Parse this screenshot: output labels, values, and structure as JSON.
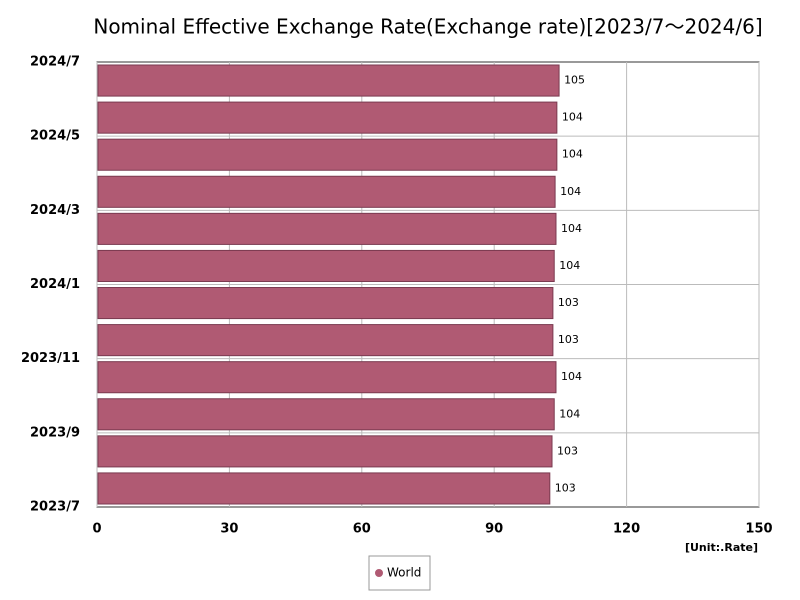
{
  "chart_data": {
    "type": "bar",
    "orientation": "horizontal",
    "title": "Nominal Effective Exchange Rate(Exchange rate)[2023/7～2024/6]",
    "categories": [
      "2023/7",
      null,
      "2023/9",
      null,
      "2023/11",
      null,
      "2024/1",
      null,
      "2024/3",
      null,
      "2024/5",
      null
    ],
    "end_label": "2024/7",
    "series": [
      {
        "name": "World",
        "color": "#b05a73",
        "values": [
          102.6,
          103.1,
          103.6,
          104.0,
          103.3,
          103.3,
          103.6,
          104.0,
          103.8,
          104.2,
          104.2,
          104.7
        ],
        "value_labels": [
          "103",
          "103",
          "104",
          "104",
          "103",
          "103",
          "104",
          "104",
          "104",
          "104",
          "104",
          "105"
        ]
      }
    ],
    "xlim": [
      0,
      150
    ],
    "xticks": [
      0,
      30,
      60,
      90,
      120,
      150
    ],
    "unit_label": "[Unit:.Rate]",
    "grid": true
  }
}
